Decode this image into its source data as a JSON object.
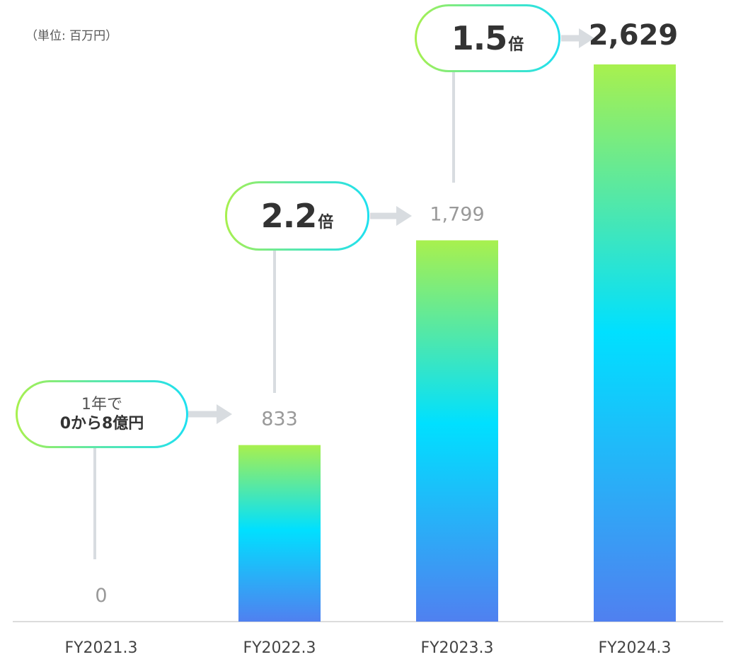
{
  "unit_label": "（単位: 百万円）",
  "chart_data": {
    "type": "bar",
    "categories": [
      "FY2021.3",
      "FY2022.3",
      "FY2023.3",
      "FY2024.3"
    ],
    "values": [
      0,
      833,
      1799,
      2629
    ],
    "value_labels": [
      "0",
      "833",
      "1,799",
      "2,629"
    ],
    "ylim": [
      0,
      2629
    ],
    "grid": false,
    "colors": {
      "bar_top": "#a8f04e",
      "bar_mid": "#00e0ff",
      "bar_bottom": "#5080f0",
      "connector": "#d8dce0",
      "axis": "#d0d0d0",
      "label_gray": "#999999",
      "label_dark": "#333333"
    },
    "annotations": [
      {
        "line1": "1年で",
        "line2": "0から8億円"
      },
      {
        "value": "2.2",
        "suffix": "倍"
      },
      {
        "value": "1.5",
        "suffix": "倍"
      }
    ]
  }
}
